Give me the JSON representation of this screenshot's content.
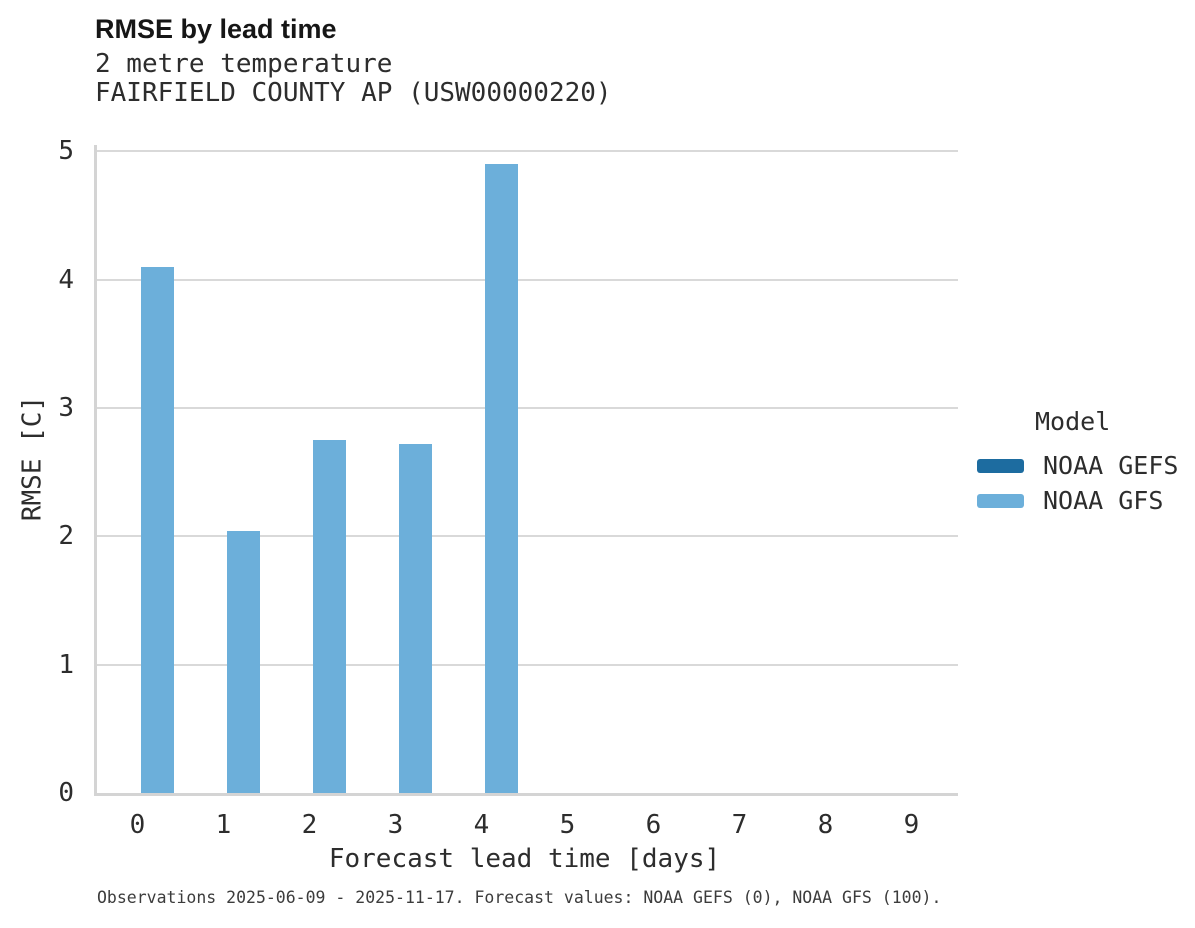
{
  "title": "RMSE by lead time",
  "subtitle_lines": [
    "2 metre temperature",
    "FAIRFIELD COUNTY AP (USW00000220)"
  ],
  "caption": "Observations 2025-06-09 - 2025-11-17. Forecast values: NOAA GEFS (0), NOAA GFS (100).",
  "legend": {
    "title": "Model"
  },
  "colors": {
    "noaa_gefs": "#1d6ca0",
    "noaa_gfs": "#6cafda",
    "gridline": "#d9d9d9",
    "axis_line": "#d4d4d4"
  },
  "chart_data": {
    "type": "bar",
    "title": "RMSE by lead time",
    "subtitle": "2 metre temperature / FAIRFIELD COUNTY AP (USW00000220)",
    "xlabel": "Forecast lead time [days]",
    "ylabel": "RMSE [C]",
    "categories": [
      "0",
      "1",
      "2",
      "3",
      "4",
      "5",
      "6",
      "7",
      "8",
      "9"
    ],
    "series": [
      {
        "name": "NOAA GEFS",
        "color": "#1d6ca0",
        "values": [
          null,
          null,
          null,
          null,
          null,
          null,
          null,
          null,
          null,
          null
        ]
      },
      {
        "name": "NOAA GFS",
        "color": "#6cafda",
        "values": [
          4.1,
          2.04,
          2.75,
          2.72,
          4.9,
          null,
          null,
          null,
          null,
          null
        ]
      }
    ],
    "ylim": [
      0,
      5.05
    ],
    "yticks": [
      0,
      1,
      2,
      3,
      4,
      5
    ],
    "grid": true,
    "legend_position": "right",
    "legend_title": "Model"
  }
}
